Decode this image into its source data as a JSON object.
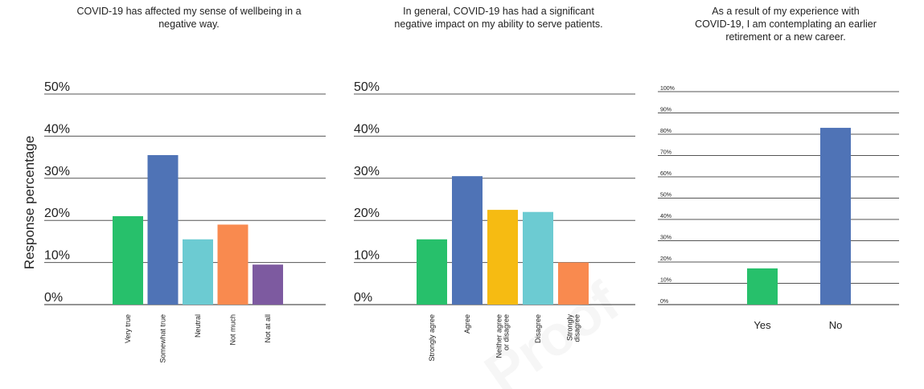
{
  "y_axis_label": "Response percentage",
  "watermark_text": "Proof",
  "colors": {
    "green": "#27c06b",
    "blue": "#4f73b6",
    "teal": "#6ccbd2",
    "orange": "#f98a4f",
    "purple": "#7d5aa0",
    "yellow": "#f6bb12",
    "grid": "#555555"
  },
  "chart_data": [
    {
      "type": "bar",
      "title": "COVID-19 has affected my sense of wellbeing in a negative way.",
      "categories": [
        "Very true",
        "Somewhat true",
        "Neutral",
        "Not much",
        "Not at all"
      ],
      "values": [
        21,
        35.5,
        15.5,
        19,
        9.5
      ],
      "bar_colors": [
        "#27c06b",
        "#4f73b6",
        "#6ccbd2",
        "#f98a4f",
        "#7d5aa0"
      ],
      "ylim": [
        0,
        50
      ],
      "yticks": [
        "0%",
        "10%",
        "20%",
        "30%",
        "40%",
        "50%"
      ],
      "grid": true
    },
    {
      "type": "bar",
      "title": "In general, COVID-19 has had a significant negative impact on my ability to serve patients.",
      "categories": [
        "Strongly agree",
        "Agree",
        "Neither agree or disagree",
        "Disagree",
        "Strongly disagree"
      ],
      "values": [
        15.5,
        30.5,
        22.5,
        22,
        10
      ],
      "bar_colors": [
        "#27c06b",
        "#4f73b6",
        "#f6bb12",
        "#6ccbd2",
        "#f98a4f"
      ],
      "ylim": [
        0,
        50
      ],
      "yticks": [
        "0%",
        "10%",
        "20%",
        "30%",
        "40%",
        "50%"
      ],
      "grid": true
    },
    {
      "type": "bar",
      "title": "As a result of my experience with COVID-19, I am contemplating an earlier retirement or a new career.",
      "categories": [
        "Yes",
        "No"
      ],
      "values": [
        17,
        83
      ],
      "bar_colors": [
        "#27c06b",
        "#4f73b6"
      ],
      "ylim": [
        0,
        100
      ],
      "yticks": [
        "0%",
        "10%",
        "20%",
        "30%",
        "40%",
        "50%",
        "60%",
        "70%",
        "80%",
        "90%",
        "100%"
      ],
      "grid": true
    }
  ]
}
